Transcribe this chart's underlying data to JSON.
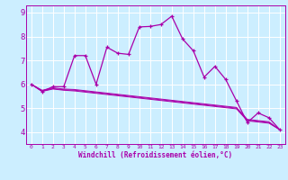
{
  "xlabel": "Windchill (Refroidissement éolien,°C)",
  "bg_color": "#cceeff",
  "line_color": "#aa00aa",
  "xlim": [
    -0.5,
    23.5
  ],
  "ylim": [
    3.5,
    9.3
  ],
  "yticks": [
    4,
    5,
    6,
    7,
    8,
    9
  ],
  "xticks": [
    0,
    1,
    2,
    3,
    4,
    5,
    6,
    7,
    8,
    9,
    10,
    11,
    12,
    13,
    14,
    15,
    16,
    17,
    18,
    19,
    20,
    21,
    22,
    23
  ],
  "series1_x": [
    0,
    1,
    2,
    3,
    4,
    5,
    6,
    7,
    8,
    9,
    10,
    11,
    12,
    13,
    14,
    15,
    16,
    17,
    18,
    19,
    20,
    21,
    22,
    23
  ],
  "series1_y": [
    6.0,
    5.7,
    5.9,
    5.9,
    7.2,
    7.2,
    6.0,
    7.55,
    7.3,
    7.25,
    8.4,
    8.42,
    8.5,
    8.85,
    7.9,
    7.4,
    6.3,
    6.75,
    6.2,
    5.3,
    4.4,
    4.8,
    4.6,
    4.1
  ],
  "series2_y": [
    6.0,
    5.75,
    5.85,
    5.8,
    5.78,
    5.73,
    5.68,
    5.63,
    5.58,
    5.53,
    5.48,
    5.43,
    5.38,
    5.33,
    5.28,
    5.23,
    5.18,
    5.13,
    5.08,
    5.03,
    4.53,
    4.48,
    4.43,
    4.1
  ],
  "series3_y": [
    6.0,
    5.72,
    5.82,
    5.77,
    5.75,
    5.7,
    5.65,
    5.6,
    5.55,
    5.5,
    5.45,
    5.4,
    5.35,
    5.3,
    5.25,
    5.2,
    5.15,
    5.1,
    5.05,
    5.0,
    4.5,
    4.45,
    4.4,
    4.1
  ],
  "series4_y": [
    6.0,
    5.7,
    5.8,
    5.75,
    5.72,
    5.67,
    5.62,
    5.57,
    5.52,
    5.47,
    5.42,
    5.37,
    5.32,
    5.27,
    5.22,
    5.17,
    5.12,
    5.07,
    5.02,
    4.97,
    4.47,
    4.42,
    4.37,
    4.1
  ]
}
